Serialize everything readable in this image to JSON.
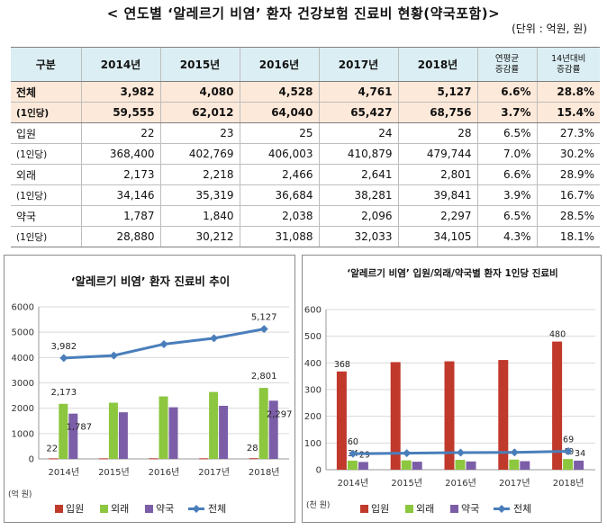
{
  "title": "< 연도별 ‘알레르기 비염’ 환자 건강보험 진료비 현황(약국포함)>",
  "unit": "(단위 : 억원, 원)",
  "table": {
    "headers": [
      "구분",
      "2014년",
      "2015년",
      "2016년",
      "2017년",
      "2018년",
      "연평균\n증감률",
      "14년대비\n증감률"
    ],
    "rows": [
      {
        "label": "전체",
        "values": [
          "3,982",
          "4,080",
          "4,528",
          "4,761",
          "5,127",
          "6.6%",
          "28.8%"
        ]
      },
      {
        "label": "(1인당)",
        "values": [
          "59,555",
          "62,012",
          "64,040",
          "65,427",
          "68,756",
          "3.7%",
          "15.4%"
        ]
      },
      {
        "label": "입원",
        "values": [
          "22",
          "23",
          "25",
          "24",
          "28",
          "6.5%",
          "27.3%"
        ]
      },
      {
        "label": "(1인당)",
        "values": [
          "368,400",
          "402,769",
          "406,003",
          "410,879",
          "479,744",
          "7.0%",
          "30.2%"
        ]
      },
      {
        "label": "외래",
        "values": [
          "2,173",
          "2,218",
          "2,466",
          "2,641",
          "2,801",
          "6.6%",
          "28.9%"
        ]
      },
      {
        "label": "(1인당)",
        "values": [
          "34,146",
          "35,319",
          "36,684",
          "38,281",
          "39,841",
          "3.9%",
          "16.7%"
        ]
      },
      {
        "label": "약국",
        "values": [
          "1,787",
          "1,840",
          "2,038",
          "2,096",
          "2,297",
          "6.5%",
          "28.5%"
        ]
      },
      {
        "label": "(1인당)",
        "values": [
          "28,880",
          "30,212",
          "31,088",
          "32,033",
          "34,105",
          "4.3%",
          "18.1%"
        ]
      }
    ]
  },
  "chart_data": [
    {
      "type": "bar",
      "title": "‘알레르기 비염’ 환자 진료비 추이",
      "ylabel": "(억 원)",
      "ylim": [
        0,
        6000
      ],
      "yticks": [
        0,
        1000,
        2000,
        3000,
        4000,
        5000,
        6000
      ],
      "categories": [
        "2014년",
        "2015년",
        "2016년",
        "2017년",
        "2018년"
      ],
      "series": [
        {
          "name": "입원",
          "kind": "bar",
          "color": "#c0392b",
          "values": [
            22,
            23,
            25,
            24,
            28
          ],
          "labels": [
            "22",
            "",
            "",
            "",
            "28"
          ]
        },
        {
          "name": "외래",
          "kind": "bar",
          "color": "#8dc63f",
          "values": [
            2173,
            2218,
            2466,
            2641,
            2801
          ],
          "labels": [
            "2,173",
            "",
            "",
            "",
            "2,801"
          ]
        },
        {
          "name": "약국",
          "kind": "bar",
          "color": "#7b5ea7",
          "values": [
            1787,
            1840,
            2038,
            2096,
            2297
          ],
          "labels": [
            "1,787",
            "",
            "",
            "",
            "2,297"
          ]
        },
        {
          "name": "전체",
          "kind": "line",
          "color": "#4a7ebb",
          "values": [
            3982,
            4080,
            4528,
            4761,
            5127
          ],
          "labels": [
            "3,982",
            "",
            "",
            "",
            "5,127"
          ]
        }
      ],
      "legend": "bottom"
    },
    {
      "type": "bar",
      "title": "‘알레르기 비염’ 입원/외래/약국별 환자 1인당 진료비",
      "ylabel": "(천 원)",
      "ylim": [
        0,
        600
      ],
      "yticks": [
        0,
        100,
        200,
        300,
        400,
        500,
        600
      ],
      "categories": [
        "2014년",
        "2015년",
        "2016년",
        "2017년",
        "2018년"
      ],
      "series": [
        {
          "name": "입원",
          "kind": "bar",
          "color": "#c0392b",
          "values": [
            368,
            403,
            406,
            411,
            480
          ],
          "labels": [
            "368",
            "",
            "",
            "",
            "480"
          ]
        },
        {
          "name": "외래",
          "kind": "bar",
          "color": "#8dc63f",
          "values": [
            34,
            35,
            37,
            38,
            40
          ],
          "labels": [
            "34",
            "",
            "",
            "",
            "40"
          ]
        },
        {
          "name": "약국",
          "kind": "bar",
          "color": "#7b5ea7",
          "values": [
            29,
            30,
            31,
            32,
            34
          ],
          "labels": [
            "29",
            "",
            "",
            "",
            "34"
          ]
        },
        {
          "name": "전체",
          "kind": "line",
          "color": "#4a7ebb",
          "values": [
            60,
            62,
            64,
            65,
            69
          ],
          "labels": [
            "60",
            "",
            "",
            "",
            "69"
          ]
        }
      ],
      "legend": "bottom"
    }
  ]
}
